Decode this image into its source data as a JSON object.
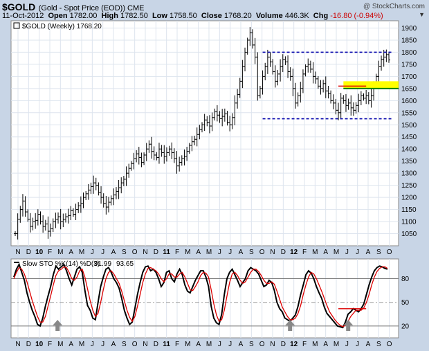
{
  "header": {
    "symbol": "$GOLD",
    "description": "(Gold - Spot Price (EOD)) CME",
    "credit": "@ StockCharts.com",
    "date": "11-Oct-2012",
    "open_label": "Open",
    "open": "1782.00",
    "high_label": "High",
    "high": "1782.50",
    "low_label": "Low",
    "low": "1758.50",
    "close_label": "Close",
    "close": "1768.20",
    "volume_label": "Volume",
    "volume": "446.3K",
    "chg_label": "Chg",
    "chg": "-16.80 (-0.94%)"
  },
  "colors": {
    "background": "#c8d5e6",
    "plot": "#ffffff",
    "grid": "#dde4ee",
    "price_bar": "#000000",
    "dashed_line": "#0000aa",
    "highlight": "#ffff00",
    "support_line": "#008000",
    "stoch_k": "#000000",
    "stoch_d": "#dd0000",
    "arrow": "#888888"
  },
  "chart_data": [
    {
      "type": "ohlc",
      "legend": "$GOLD (Weekly) 1768.20",
      "ylim": [
        1000,
        1930
      ],
      "y_ticks": [
        1050,
        1100,
        1150,
        1200,
        1250,
        1300,
        1350,
        1400,
        1450,
        1500,
        1550,
        1600,
        1650,
        1700,
        1750,
        1800,
        1850,
        1900
      ],
      "x_months": [
        "N",
        "D",
        "10",
        "F",
        "M",
        "A",
        "M",
        "J",
        "J",
        "A",
        "S",
        "O",
        "N",
        "D",
        "11",
        "F",
        "M",
        "A",
        "M",
        "J",
        "J",
        "A",
        "S",
        "O",
        "N",
        "D",
        "12",
        "F",
        "M",
        "A",
        "M",
        "J",
        "J",
        "A",
        "S",
        "O"
      ],
      "x_bold_labels": [
        "10",
        "11",
        "12"
      ],
      "weekly_closes": [
        1050,
        1110,
        1150,
        1185,
        1140,
        1110,
        1080,
        1100,
        1105,
        1130,
        1100,
        1080,
        1090,
        1060,
        1070,
        1100,
        1110,
        1120,
        1100,
        1110,
        1120,
        1125,
        1145,
        1130,
        1150,
        1165,
        1175,
        1200,
        1215,
        1230,
        1245,
        1260,
        1250,
        1220,
        1200,
        1175,
        1160,
        1180,
        1195,
        1210,
        1225,
        1240,
        1260,
        1275,
        1300,
        1320,
        1340,
        1360,
        1380,
        1365,
        1345,
        1375,
        1400,
        1420,
        1390,
        1375,
        1365,
        1400,
        1385,
        1370,
        1385,
        1400,
        1385,
        1360,
        1330,
        1345,
        1360,
        1370,
        1390,
        1415,
        1430,
        1440,
        1460,
        1480,
        1500,
        1520,
        1510,
        1495,
        1530,
        1555,
        1540,
        1525,
        1535,
        1545,
        1510,
        1500,
        1530,
        1590,
        1625,
        1680,
        1740,
        1800,
        1850,
        1880,
        1830,
        1780,
        1620,
        1650,
        1700,
        1740,
        1780,
        1760,
        1720,
        1680,
        1710,
        1740,
        1770,
        1760,
        1720,
        1700,
        1650,
        1590,
        1620,
        1650,
        1710,
        1740,
        1750,
        1730,
        1700,
        1690,
        1660,
        1650,
        1670,
        1640,
        1630,
        1600,
        1590,
        1560,
        1550,
        1610,
        1600,
        1580,
        1590,
        1570,
        1560,
        1580,
        1600,
        1620,
        1610,
        1620,
        1600,
        1620,
        1660,
        1700,
        1740,
        1770,
        1780,
        1790,
        1768
      ],
      "resistance": 1800,
      "support": 1525,
      "highlight_zone": [
        1650,
        1680
      ],
      "support_zone_line": 1650,
      "red_line": 1660
    },
    {
      "type": "line",
      "label": "Slow STO %K(14) %D(3)",
      "k_value": "91.99",
      "d_value": "93.65",
      "ylim": [
        5,
        105
      ],
      "y_ticks": [
        20,
        50,
        80
      ],
      "series": [
        {
          "name": "%K",
          "values": [
            82,
            92,
            98,
            88,
            78,
            62,
            50,
            40,
            32,
            22,
            20,
            30,
            45,
            58,
            70,
            85,
            96,
            92,
            95,
            98,
            90,
            80,
            72,
            82,
            92,
            95,
            88,
            65,
            46,
            40,
            30,
            28,
            50,
            70,
            82,
            92,
            94,
            88,
            80,
            75,
            68,
            55,
            40,
            30,
            22,
            25,
            42,
            60,
            75,
            88,
            95,
            96,
            90,
            92,
            88,
            80,
            70,
            75,
            88,
            90,
            80,
            76,
            86,
            92,
            85,
            72,
            64,
            62,
            70,
            78,
            84,
            90,
            90,
            82,
            70,
            45,
            30,
            24,
            22,
            35,
            60,
            80,
            88,
            92,
            85,
            78,
            70,
            75,
            80,
            90,
            94,
            92,
            90,
            86,
            78,
            70,
            72,
            78,
            75,
            65,
            50,
            42,
            38,
            30,
            28,
            26,
            30,
            34,
            45,
            60,
            72,
            85,
            90,
            87,
            80,
            70,
            62,
            55,
            44,
            36,
            32,
            28,
            24,
            20,
            19,
            18,
            25,
            35,
            38,
            42,
            40,
            38,
            42,
            48,
            60,
            72,
            82,
            90,
            94,
            96,
            95,
            93,
            92
          ]
        },
        {
          "name": "%D",
          "values": [
            80,
            88,
            94,
            92,
            86,
            76,
            64,
            52,
            42,
            32,
            25,
            25,
            32,
            45,
            58,
            72,
            84,
            90,
            92,
            95,
            94,
            88,
            80,
            78,
            82,
            90,
            92,
            82,
            67,
            52,
            40,
            32,
            36,
            50,
            66,
            80,
            88,
            90,
            86,
            80,
            74,
            64,
            52,
            40,
            31,
            26,
            32,
            45,
            60,
            75,
            86,
            93,
            94,
            92,
            90,
            86,
            80,
            76,
            80,
            86,
            86,
            82,
            82,
            86,
            88,
            82,
            74,
            66,
            65,
            70,
            76,
            84,
            88,
            87,
            82,
            66,
            48,
            34,
            26,
            28,
            40,
            58,
            75,
            86,
            88,
            84,
            78,
            74,
            76,
            82,
            88,
            92,
            92,
            89,
            84,
            78,
            74,
            74,
            76,
            73,
            64,
            54,
            44,
            38,
            32,
            28,
            28,
            30,
            36,
            46,
            60,
            72,
            82,
            88,
            86,
            80,
            72,
            64,
            55,
            46,
            38,
            33,
            28,
            24,
            21,
            19,
            21,
            26,
            32,
            36,
            40,
            40,
            40,
            43,
            50,
            60,
            72,
            82,
            89,
            93,
            95,
            95,
            93
          ]
        }
      ],
      "red_segment_level": 42
    }
  ]
}
